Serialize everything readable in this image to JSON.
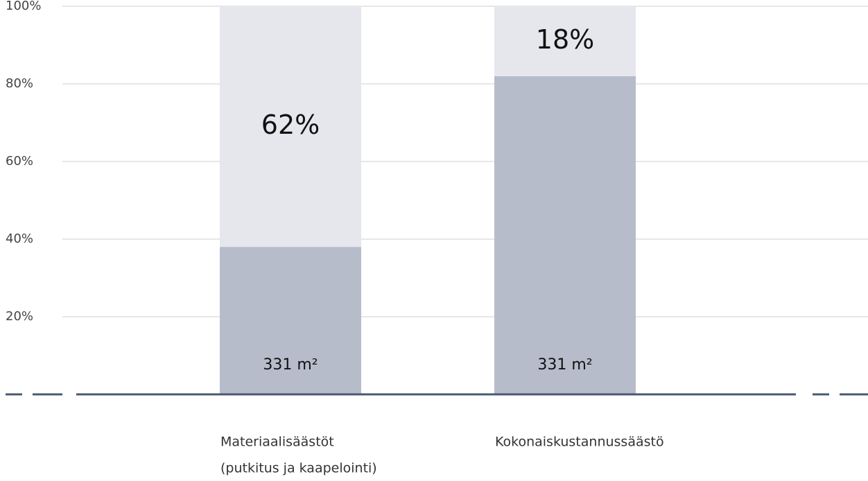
{
  "chart_data": {
    "type": "stacked-bar",
    "categories": [
      [
        "Materiaalisäästöt",
        "(putkitus ja kaapelointi)"
      ],
      [
        "Kokonaiskustannussäästö"
      ]
    ],
    "series": [
      {
        "color": "#b7bccb",
        "values": [
          38,
          82
        ]
      },
      {
        "color": "#e6e7ed",
        "values": [
          62,
          18
        ],
        "value_labels": [
          "62%",
          "18%"
        ]
      }
    ],
    "bar_labels": [
      "331 m²",
      "331 m²"
    ],
    "ylim": [
      0,
      100
    ],
    "yticks": [
      {
        "value": 20,
        "label": "20%"
      },
      {
        "value": 40,
        "label": "40%"
      },
      {
        "value": 60,
        "label": "60%"
      },
      {
        "value": 80,
        "label": "80%"
      },
      {
        "value": 100,
        "label": "100%"
      }
    ],
    "grid": true
  }
}
